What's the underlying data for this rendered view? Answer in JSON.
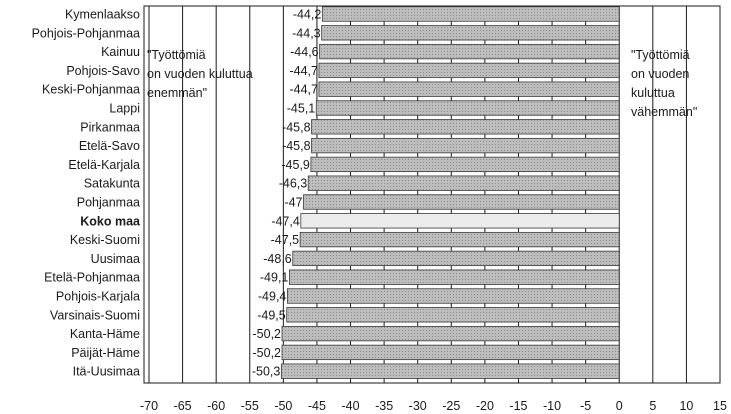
{
  "chart_data": {
    "type": "bar",
    "orientation": "horizontal",
    "categories": [
      "Kymenlaakso",
      "Pohjois-Pohjanmaa",
      "Kainuu",
      "Pohjois-Savo",
      "Keski-Pohjanmaa",
      "Lappi",
      "Pirkanmaa",
      "Etelä-Savo",
      "Etelä-Karjala",
      "Satakunta",
      "Pohjanmaa",
      "Koko maa",
      "Keski-Suomi",
      "Uusimaa",
      "Etelä-Pohjanmaa",
      "Pohjois-Karjala",
      "Varsinais-Suomi",
      "Kanta-Häme",
      "Päijät-Häme",
      "Itä-Uusimaa"
    ],
    "values": [
      -44.2,
      -44.3,
      -44.6,
      -44.7,
      -44.7,
      -45.1,
      -45.8,
      -45.8,
      -45.9,
      -46.3,
      -47,
      -47.4,
      -47.5,
      -48.6,
      -49.1,
      -49.4,
      -49.5,
      -50.2,
      -50.2,
      -50.3
    ],
    "value_labels": [
      "-44,2",
      "-44,3",
      "-44,6",
      "-44,7",
      "-44,7",
      "-45,1",
      "-45,8",
      "-45,8",
      "-45,9",
      "-46,3",
      "-47",
      "-47,4",
      "-47,5",
      "-48,6",
      "-49,1",
      "-49,4",
      "-49,5",
      "-50,2",
      "-50,2",
      "-50,3"
    ],
    "highlight_category": "Koko maa",
    "xlim": [
      -70,
      15
    ],
    "x_ticks": [
      -70,
      -65,
      -60,
      -55,
      -50,
      -45,
      -40,
      -35,
      -30,
      -25,
      -20,
      -15,
      -10,
      -5,
      0,
      5,
      10,
      15
    ],
    "grid": "vertical lines every 5 units",
    "annotations": {
      "left": [
        "\"Työttömiä",
        "on vuoden kuluttua",
        "enemmän\""
      ],
      "right": [
        "\"Työttömiä",
        "on vuoden",
        "kuluttua",
        "vähemmän\""
      ]
    },
    "colors": {
      "bar_fill": "#b9b9b9",
      "bar_highlight_fill": "#ececec",
      "bar_stroke": "#3a3a3a",
      "grid": "#1a1a1a",
      "text": "#1a1a1a"
    }
  }
}
